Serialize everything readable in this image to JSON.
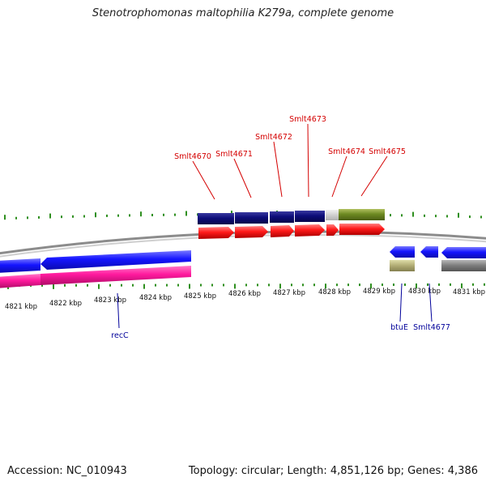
{
  "title": "Stenotrophomonas maltophilia K279a, complete genome",
  "footer": {
    "accession": "Accession: NC_010943",
    "summary": "Topology: circular; Length: 4,851,126 bp; Genes: 4,386"
  },
  "colors": {
    "backbone": "#9a9a9a",
    "tick": "#2f8f1f",
    "cds_forward": "#ff1a1a",
    "gene_forward": "#0d0d7a",
    "cds_reverse": "#1a1aff",
    "gene_reverse": "#ff1a9e",
    "label_forward": "#d40000",
    "label_reverse": "#00009a"
  },
  "axis": {
    "unit": "kbp",
    "ticks": [
      4821,
      4822,
      4823,
      4824,
      4825,
      4826,
      4827,
      4828,
      4829,
      4830,
      4831
    ]
  },
  "features": {
    "forward_labels": [
      "Smlt4670",
      "Smlt4671",
      "Smlt4672",
      "Smlt4673",
      "Smlt4674",
      "Smlt4675"
    ],
    "reverse_labels": [
      "recC",
      "btuE",
      "Smlt4677"
    ]
  }
}
